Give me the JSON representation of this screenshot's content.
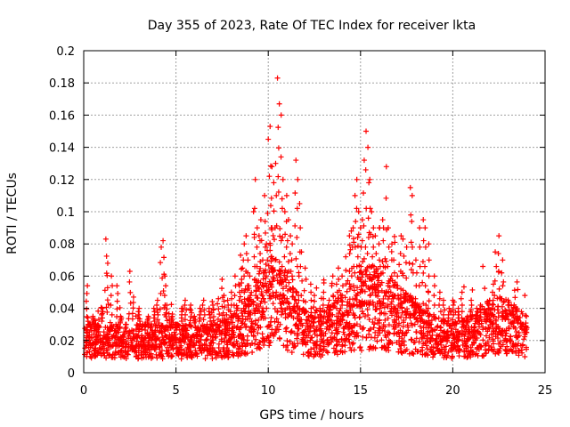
{
  "chart_data": {
    "type": "scatter",
    "title": "Day 355 of 2023, Rate Of TEC Index for receiver lkta",
    "xlabel": "GPS time / hours",
    "ylabel": "ROTI / TECUs",
    "xlim": [
      0,
      25
    ],
    "ylim": [
      0,
      0.2
    ],
    "xticks": [
      0,
      5,
      10,
      15,
      20,
      25
    ],
    "yticks": [
      0,
      0.02,
      0.04,
      0.06,
      0.08,
      0.1,
      0.12,
      0.14,
      0.16,
      0.18,
      0.2
    ],
    "xtick_labels": [
      "0",
      "5",
      "10",
      "15",
      "20",
      "25"
    ],
    "ytick_labels": [
      "0",
      "0.02",
      "0.04",
      "0.06",
      "0.08",
      "0.1",
      "0.12",
      "0.14",
      "0.16",
      "0.18",
      "0.2"
    ],
    "grid": true,
    "marker": "+",
    "color": "#ff0000",
    "series": [
      {
        "x": [
          0.2,
          0.3,
          0.5,
          0.8,
          1.0,
          1.2,
          1.3,
          1.5,
          1.8,
          2.0,
          2.3,
          2.5,
          2.7,
          3.0,
          3.3,
          3.5,
          3.8,
          4.0,
          4.2,
          4.3,
          4.4,
          4.5,
          4.8,
          5.0,
          5.3,
          5.5,
          5.8,
          6.0,
          6.3,
          6.5,
          6.8,
          7.0,
          7.3,
          7.5,
          7.6,
          7.8,
          8.0,
          8.2,
          8.4,
          8.5,
          8.6,
          8.7,
          8.8,
          8.9,
          9.0,
          9.2,
          9.3,
          9.4,
          9.5,
          9.6,
          9.7,
          9.8,
          9.9,
          10.0,
          10.1,
          10.2,
          10.3,
          10.4,
          10.5,
          10.6,
          10.7,
          10.8,
          10.9,
          11.0,
          11.1,
          11.2,
          11.3,
          11.5,
          11.6,
          11.7,
          11.8,
          12.0,
          12.3,
          12.5,
          12.8,
          13.0,
          13.3,
          13.5,
          13.7,
          13.8,
          14.0,
          14.2,
          14.4,
          14.5,
          14.6,
          14.7,
          14.8,
          14.9,
          15.0,
          15.1,
          15.2,
          15.3,
          15.4,
          15.5,
          15.6,
          15.7,
          15.8,
          16.0,
          16.2,
          16.4,
          16.5,
          16.7,
          16.8,
          17.0,
          17.2,
          17.3,
          17.5,
          17.7,
          17.8,
          18.0,
          18.2,
          18.4,
          18.5,
          18.7,
          19.0,
          19.3,
          19.5,
          19.8,
          20.0,
          20.3,
          20.5,
          20.8,
          21.0,
          21.3,
          21.5,
          21.8,
          22.0,
          22.2,
          22.3,
          22.5,
          22.7,
          23.0,
          23.3,
          23.5,
          23.8,
          24.0
        ],
        "y": [
          0.054,
          0.03,
          0.035,
          0.028,
          0.04,
          0.083,
          0.068,
          0.06,
          0.054,
          0.035,
          0.03,
          0.063,
          0.047,
          0.04,
          0.03,
          0.035,
          0.04,
          0.045,
          0.078,
          0.082,
          0.06,
          0.042,
          0.035,
          0.03,
          0.04,
          0.045,
          0.042,
          0.035,
          0.04,
          0.045,
          0.04,
          0.042,
          0.046,
          0.058,
          0.048,
          0.045,
          0.05,
          0.06,
          0.055,
          0.073,
          0.065,
          0.08,
          0.085,
          0.07,
          0.06,
          0.1,
          0.12,
          0.09,
          0.085,
          0.095,
          0.07,
          0.11,
          0.08,
          0.145,
          0.153,
          0.128,
          0.118,
          0.13,
          0.183,
          0.167,
          0.16,
          0.12,
          0.1,
          0.11,
          0.095,
          0.085,
          0.08,
          0.132,
          0.12,
          0.105,
          0.075,
          0.065,
          0.055,
          0.048,
          0.04,
          0.05,
          0.045,
          0.06,
          0.055,
          0.065,
          0.06,
          0.072,
          0.085,
          0.088,
          0.09,
          0.11,
          0.12,
          0.1,
          0.09,
          0.095,
          0.132,
          0.15,
          0.14,
          0.12,
          0.1,
          0.09,
          0.085,
          0.08,
          0.095,
          0.128,
          0.09,
          0.08,
          0.07,
          0.06,
          0.085,
          0.083,
          0.078,
          0.115,
          0.11,
          0.07,
          0.09,
          0.095,
          0.09,
          0.08,
          0.06,
          0.05,
          0.045,
          0.04,
          0.045,
          0.04,
          0.05,
          0.035,
          0.045,
          0.04,
          0.042,
          0.038,
          0.045,
          0.055,
          0.075,
          0.085,
          0.07,
          0.045,
          0.04,
          0.035,
          0.03,
          0.025
        ],
        "baseline": "dense points between 0.005 and 0.04 TECU across 0–24 h"
      }
    ]
  }
}
